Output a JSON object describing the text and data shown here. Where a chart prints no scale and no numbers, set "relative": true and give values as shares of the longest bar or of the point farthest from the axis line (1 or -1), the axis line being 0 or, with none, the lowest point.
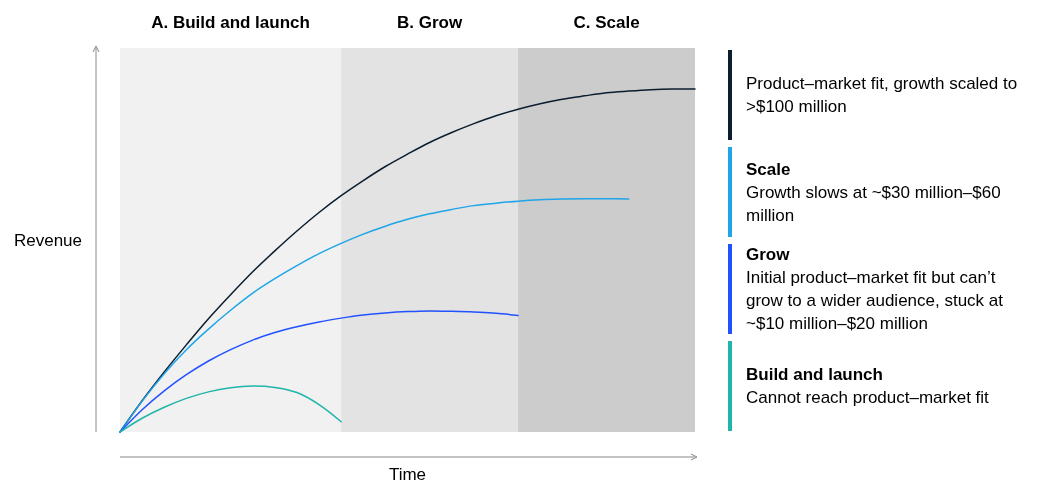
{
  "chart_data": {
    "type": "line",
    "relative": true,
    "xlabel": "Time",
    "ylabel": "Revenue",
    "legend": "right",
    "categories": [
      null,
      null,
      null,
      null,
      null,
      null,
      null,
      null,
      null,
      null,
      null,
      null,
      null,
      null,
      null,
      null,
      null,
      null,
      null,
      null,
      null,
      null,
      null,
      null,
      null,
      null,
      null
    ],
    "series": [
      {
        "color": "#0b1d2e",
        "values": [
          0,
          0.091,
          0.175,
          0.254,
          0.33,
          0.4,
          0.467,
          0.528,
          0.586,
          0.64,
          0.689,
          0.733,
          0.774,
          0.81,
          0.844,
          0.873,
          0.899,
          0.922,
          0.941,
          0.957,
          0.97,
          0.98,
          0.989,
          0.994,
          0.998,
          1,
          1
        ]
      },
      {
        "name": "Scale",
        "color": "#1ea5e8",
        "values": [
          0,
          0.09,
          0.17,
          0.24,
          0.3,
          0.355,
          0.405,
          0.447,
          0.485,
          0.52,
          0.55,
          0.577,
          0.6,
          0.62,
          0.636,
          0.649,
          0.66,
          0.667,
          0.673,
          0.677,
          0.679,
          0.68,
          0.68,
          0.679,
          null,
          null,
          null
        ]
      },
      {
        "name": "Grow",
        "color": "#2251ff",
        "values": [
          0,
          0.065,
          0.12,
          0.167,
          0.207,
          0.24,
          0.268,
          0.29,
          0.307,
          0.321,
          0.332,
          0.341,
          0.347,
          0.351,
          0.353,
          0.352,
          0.35,
          0.346,
          0.34,
          null,
          null,
          null,
          null,
          null,
          null,
          null,
          null
        ]
      },
      {
        "name": "Build and launch",
        "color": "#1fb5a8",
        "values": [
          0,
          0.04,
          0.072,
          0.098,
          0.117,
          0.129,
          0.134,
          0.13,
          0.115,
          0.08,
          0.03,
          null,
          null,
          null,
          null,
          null,
          null,
          null,
          null,
          null,
          null,
          null,
          null,
          null,
          null,
          null,
          null
        ]
      }
    ],
    "annotations": [
      "A. Build and launch",
      "B. Grow",
      "C. Scale",
      "Product–market fit, growth scaled to >$100 million",
      "Growth slows at ~$30 million–$60 million",
      "Initial product–market fit but can’t grow to a wider audience, stuck at ~$10 million–$20 million",
      "Cannot reach product–market fit"
    ]
  }
}
